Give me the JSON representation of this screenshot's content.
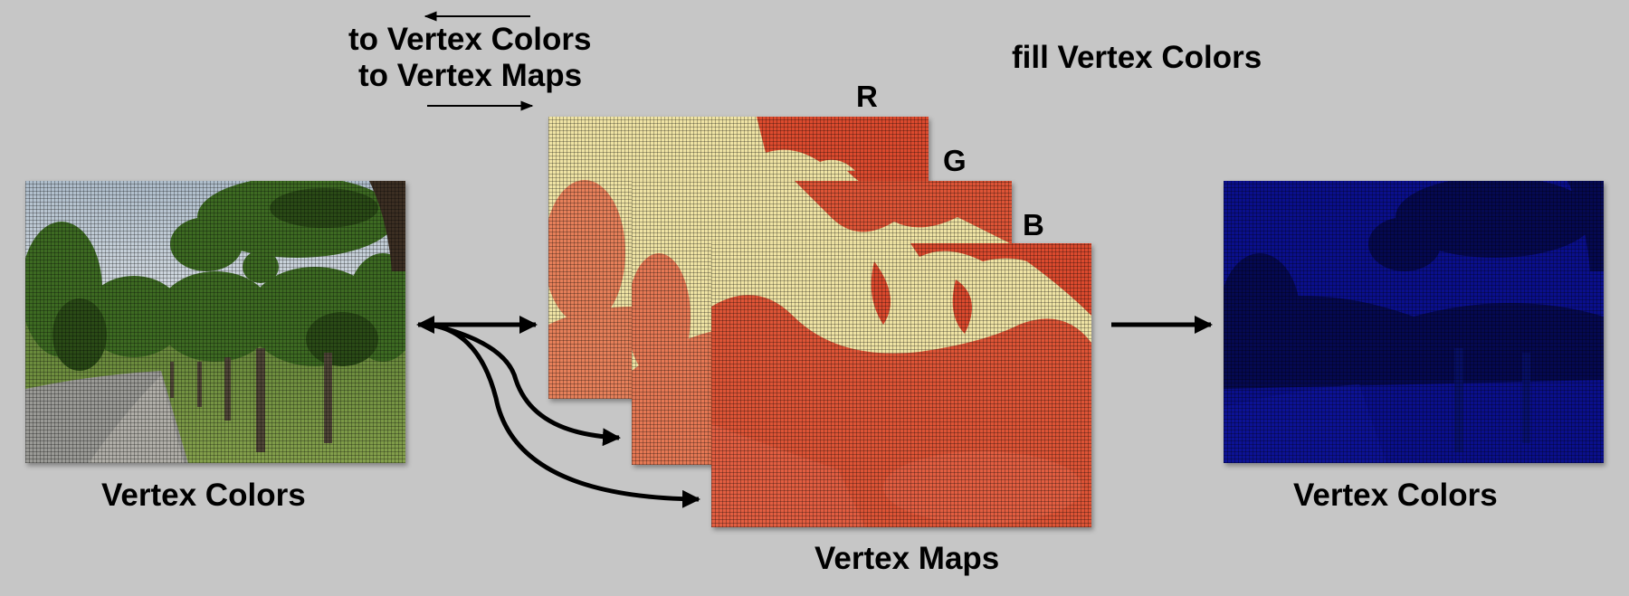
{
  "labels": {
    "to_vertex_colors": "to Vertex Colors",
    "to_vertex_maps": "to Vertex Maps",
    "fill_vertex_colors": "fill Vertex Colors",
    "channel_r": "R",
    "channel_g": "G",
    "channel_b": "B",
    "left_caption": "Vertex Colors",
    "middle_caption": "Vertex Maps",
    "right_caption": "Vertex Colors"
  },
  "colors": {
    "background": "#c6c6c6",
    "map_light": "#efe3a4",
    "map_red": "#d8301a",
    "result_blue": "#0a0f8c"
  }
}
